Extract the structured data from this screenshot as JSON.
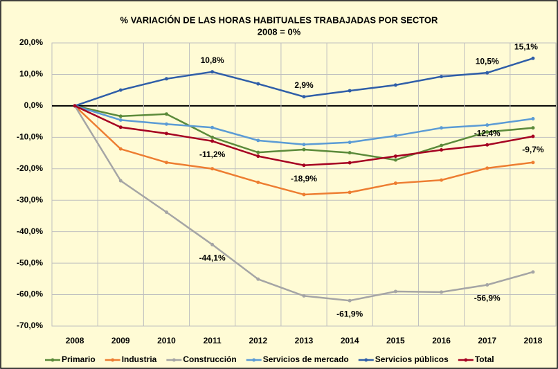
{
  "chart_data": {
    "type": "line",
    "title": "% VARIACIÓN DE LAS HORAS HABITUALES TRABAJADAS POR SECTOR",
    "subtitle": "2008 = 0%",
    "categories": [
      "2008",
      "2009",
      "2010",
      "2011",
      "2012",
      "2013",
      "2014",
      "2015",
      "2016",
      "2017",
      "2018"
    ],
    "ylim": [
      -70,
      20
    ],
    "yticks": [
      {
        "value": 20,
        "label": "20,0%"
      },
      {
        "value": 10,
        "label": "10,0%"
      },
      {
        "value": 0,
        "label": "0,0%"
      },
      {
        "value": -10,
        "label": "-10,0%"
      },
      {
        "value": -20,
        "label": "-20,0%"
      },
      {
        "value": -30,
        "label": "-30,0%"
      },
      {
        "value": -40,
        "label": "-40,0%"
      },
      {
        "value": -50,
        "label": "-50,0%"
      },
      {
        "value": -60,
        "label": "-60,0%"
      },
      {
        "value": -70,
        "label": "-70,0%"
      }
    ],
    "grid": true,
    "legend": "bottom",
    "series": [
      {
        "name": "Primario",
        "color": "#5b8a3a",
        "values": [
          0,
          -3.3,
          -2.6,
          -10.0,
          -14.8,
          -13.9,
          -14.9,
          -17.2,
          -12.6,
          -8.3,
          -7.0
        ]
      },
      {
        "name": "Industria",
        "color": "#ed7d31",
        "values": [
          0,
          -13.7,
          -18.0,
          -20.0,
          -24.3,
          -28.2,
          -27.5,
          -24.6,
          -23.6,
          -19.8,
          -18.0
        ]
      },
      {
        "name": "Construcción",
        "color": "#a5a5a5",
        "values": [
          0,
          -23.8,
          -33.8,
          -44.1,
          -55.1,
          -60.4,
          -61.9,
          -59.0,
          -59.2,
          -56.9,
          -52.8
        ],
        "value_labels": [
          null,
          null,
          null,
          "-44,1%",
          null,
          null,
          "-61,9%",
          null,
          null,
          "-56,9%",
          null
        ],
        "label_color": "#ff0000"
      },
      {
        "name": "Servicios de mercado",
        "color": "#5b9bd5",
        "values": [
          0,
          -4.5,
          -5.8,
          -6.9,
          -11.0,
          -12.3,
          -11.6,
          -9.5,
          -7.0,
          -6.1,
          -4.1
        ]
      },
      {
        "name": "Servicios públicos",
        "color": "#2f5ea8",
        "values": [
          0,
          5.0,
          8.6,
          10.8,
          7.0,
          2.9,
          4.8,
          6.6,
          9.3,
          10.5,
          15.1
        ],
        "value_labels": [
          null,
          null,
          null,
          "10,8%",
          null,
          "2,9%",
          null,
          null,
          null,
          "10,5%",
          "15,1%"
        ],
        "label_color": "#000000"
      },
      {
        "name": "Total",
        "color": "#a50021",
        "values": [
          0,
          -6.8,
          -8.8,
          -11.2,
          -16.0,
          -18.9,
          -18.1,
          -16.0,
          -14.0,
          -12.4,
          -9.7
        ],
        "value_labels": [
          null,
          null,
          null,
          "-11,2%",
          null,
          "-18,9%",
          null,
          null,
          null,
          "-12,4%",
          "-9,7%"
        ],
        "label_color": "#ff0000"
      }
    ]
  }
}
